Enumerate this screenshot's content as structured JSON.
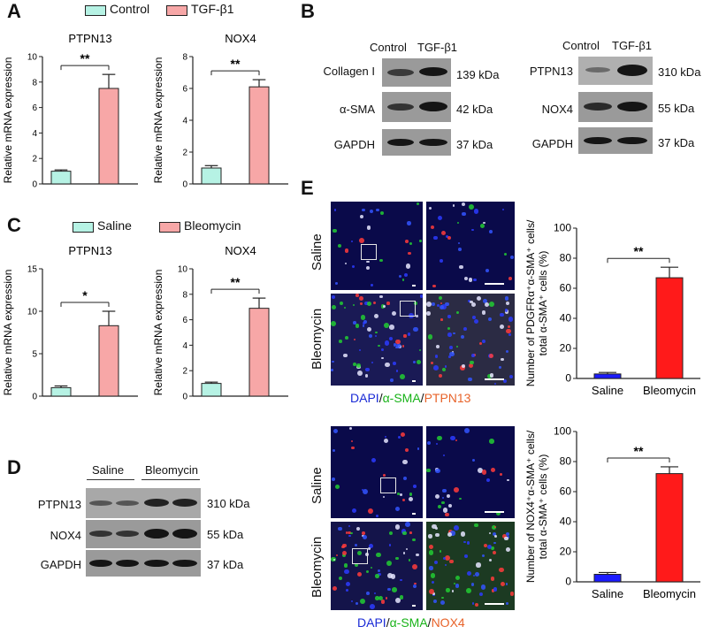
{
  "panels": {
    "A": "A",
    "B": "B",
    "C": "C",
    "D": "D",
    "E": "E"
  },
  "colors": {
    "control": "#b6f2e4",
    "treat": "#f7a7a7",
    "saline_e": "#1a1aff",
    "bleo_e": "#ff1a1a",
    "dapi": "#1a2ad6",
    "sma": "#19b319",
    "ptpn": "#e8632a",
    "nox": "#e8632a"
  },
  "legendA": {
    "control": "Control",
    "treat": "TGF-β1"
  },
  "legendC": {
    "control": "Saline",
    "treat": "Bleomycin"
  },
  "panelB": {
    "left_headers": [
      "Control",
      "TGF-β1"
    ],
    "right_headers": [
      "Control",
      "TGF-β1"
    ],
    "left_rows": [
      {
        "label": "Collagen I",
        "kda": "139 kDa"
      },
      {
        "label": "α-SMA",
        "kda": "42 kDa"
      },
      {
        "label": "GAPDH",
        "kda": "37 kDa"
      }
    ],
    "right_rows": [
      {
        "label": "PTPN13",
        "kda": "310 kDa"
      },
      {
        "label": "NOX4",
        "kda": "55 kDa"
      },
      {
        "label": "GAPDH",
        "kda": "37 kDa"
      }
    ]
  },
  "panelD": {
    "headers": [
      "Saline",
      "Bleomycin"
    ],
    "rows": [
      {
        "label": "PTPN13",
        "kda": "310 kDa"
      },
      {
        "label": "NOX4",
        "kda": "55 kDa"
      },
      {
        "label": "GAPDH",
        "kda": "37 kDa"
      }
    ]
  },
  "panelE": {
    "row_saline": "Saline",
    "row_bleo": "Bleomycin",
    "cap1": {
      "dapi": "DAPI",
      "sep1": "/",
      "sma": "α-SMA",
      "sep2": "/",
      "marker": "PTPN13"
    },
    "cap2": {
      "dapi": "DAPI",
      "sep1": "/",
      "sma": "α-SMA",
      "sep2": "/",
      "marker": "NOX4"
    }
  },
  "chart_data": [
    {
      "id": "a1",
      "type": "bar",
      "title": "PTPN13",
      "ylabel": "Relative mRNA expression",
      "categories": [
        "Control",
        "TGF-β1"
      ],
      "values": [
        1.0,
        7.5
      ],
      "errors": [
        0.1,
        1.1
      ],
      "ylim": [
        0,
        10
      ],
      "yticks": [
        0,
        2,
        4,
        6,
        8,
        10
      ],
      "sig": "**"
    },
    {
      "id": "a2",
      "type": "bar",
      "title": "NOX4",
      "ylabel": "Relative mRNA expression",
      "categories": [
        "Control",
        "TGF-β1"
      ],
      "values": [
        1.0,
        6.1
      ],
      "errors": [
        0.15,
        0.45
      ],
      "ylim": [
        0,
        8
      ],
      "yticks": [
        0,
        2,
        4,
        6,
        8
      ],
      "sig": "**"
    },
    {
      "id": "c1",
      "type": "bar",
      "title": "PTPN13",
      "ylabel": "Relative mRNA expression",
      "categories": [
        "Saline",
        "Bleomycin"
      ],
      "values": [
        1.0,
        8.3
      ],
      "errors": [
        0.2,
        1.7
      ],
      "ylim": [
        0,
        15
      ],
      "yticks": [
        0,
        5,
        10,
        15
      ],
      "sig": "*"
    },
    {
      "id": "c2",
      "type": "bar",
      "title": "NOX4",
      "ylabel": "Relative mRNA expression",
      "categories": [
        "Saline",
        "Bleomycin"
      ],
      "values": [
        1.0,
        6.9
      ],
      "errors": [
        0.1,
        0.8
      ],
      "ylim": [
        0,
        10
      ],
      "yticks": [
        0,
        2,
        4,
        6,
        8,
        10
      ],
      "sig": "**"
    },
    {
      "id": "e1",
      "type": "bar",
      "title": "",
      "ylabel": "Number of PDGFRα⁺α-SMA⁺ cells/|total α-SMA⁺ cells (%)",
      "categories": [
        "Saline",
        "Bleomycin"
      ],
      "values": [
        3,
        67
      ],
      "errors": [
        1,
        7
      ],
      "ylim": [
        0,
        100
      ],
      "yticks": [
        0,
        20,
        40,
        60,
        80,
        100
      ],
      "sig": "**"
    },
    {
      "id": "e2",
      "type": "bar",
      "title": "",
      "ylabel": "Number of NOX4⁺α-SMA⁺ cells/|total α-SMA⁺ cells (%)",
      "categories": [
        "Saline",
        "Bleomycin"
      ],
      "values": [
        5,
        72
      ],
      "errors": [
        1.2,
        4.5
      ],
      "ylim": [
        0,
        100
      ],
      "yticks": [
        0,
        20,
        40,
        60,
        80,
        100
      ],
      "sig": "**"
    }
  ]
}
